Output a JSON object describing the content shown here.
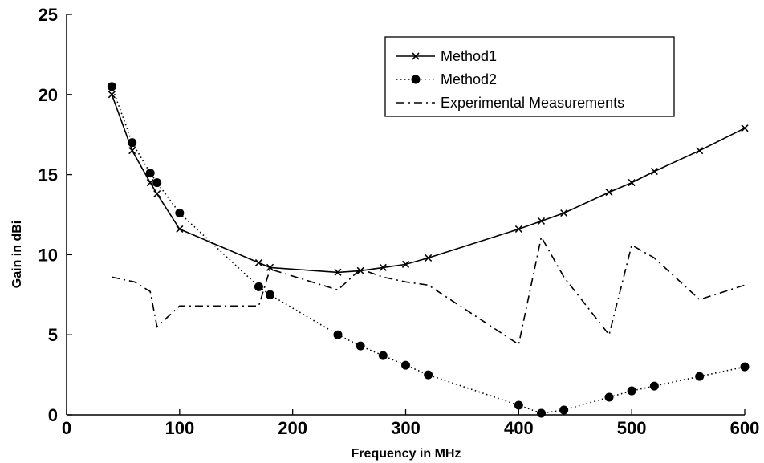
{
  "chart_data": {
    "type": "line",
    "xlabel": "Frequency in MHz",
    "ylabel": "Gain in dBi",
    "xlim": [
      0,
      600
    ],
    "ylim": [
      0,
      25
    ],
    "xticks": [
      0,
      100,
      200,
      300,
      400,
      500,
      600
    ],
    "yticks": [
      0,
      5,
      10,
      15,
      20,
      25
    ],
    "grid": false,
    "legend_position": "top-right",
    "series": [
      {
        "name": "Method1",
        "style": "solid-x",
        "color": "#000000",
        "x": [
          40,
          58,
          74,
          80,
          100,
          170,
          180,
          240,
          260,
          280,
          300,
          320,
          400,
          420,
          440,
          480,
          500,
          520,
          560,
          600
        ],
        "y": [
          20.0,
          16.5,
          14.5,
          13.8,
          11.6,
          9.5,
          9.2,
          8.9,
          9.0,
          9.2,
          9.4,
          9.8,
          11.6,
          12.1,
          12.6,
          13.9,
          14.5,
          15.2,
          16.5,
          17.9
        ]
      },
      {
        "name": "Method2",
        "style": "dotted-circle",
        "color": "#000000",
        "x": [
          40,
          58,
          74,
          80,
          100,
          170,
          180,
          240,
          260,
          280,
          300,
          320,
          400,
          420,
          440,
          480,
          500,
          520,
          560,
          600
        ],
        "y": [
          20.5,
          17.0,
          15.1,
          14.5,
          12.6,
          8.0,
          7.5,
          5.0,
          4.3,
          3.7,
          3.1,
          2.5,
          0.6,
          0.1,
          0.3,
          1.1,
          1.5,
          1.8,
          2.4,
          3.0
        ]
      },
      {
        "name": "Experimental Measurements",
        "style": "dashdot",
        "color": "#000000",
        "x": [
          40,
          60,
          74,
          80,
          100,
          170,
          180,
          240,
          260,
          280,
          300,
          320,
          400,
          420,
          440,
          480,
          500,
          520,
          560,
          600
        ],
        "y": [
          8.6,
          8.3,
          7.7,
          5.5,
          6.8,
          6.8,
          9.1,
          7.8,
          9.1,
          8.6,
          8.3,
          8.1,
          4.4,
          11.1,
          8.6,
          5.0,
          10.6,
          9.8,
          7.2,
          8.1
        ]
      }
    ]
  }
}
